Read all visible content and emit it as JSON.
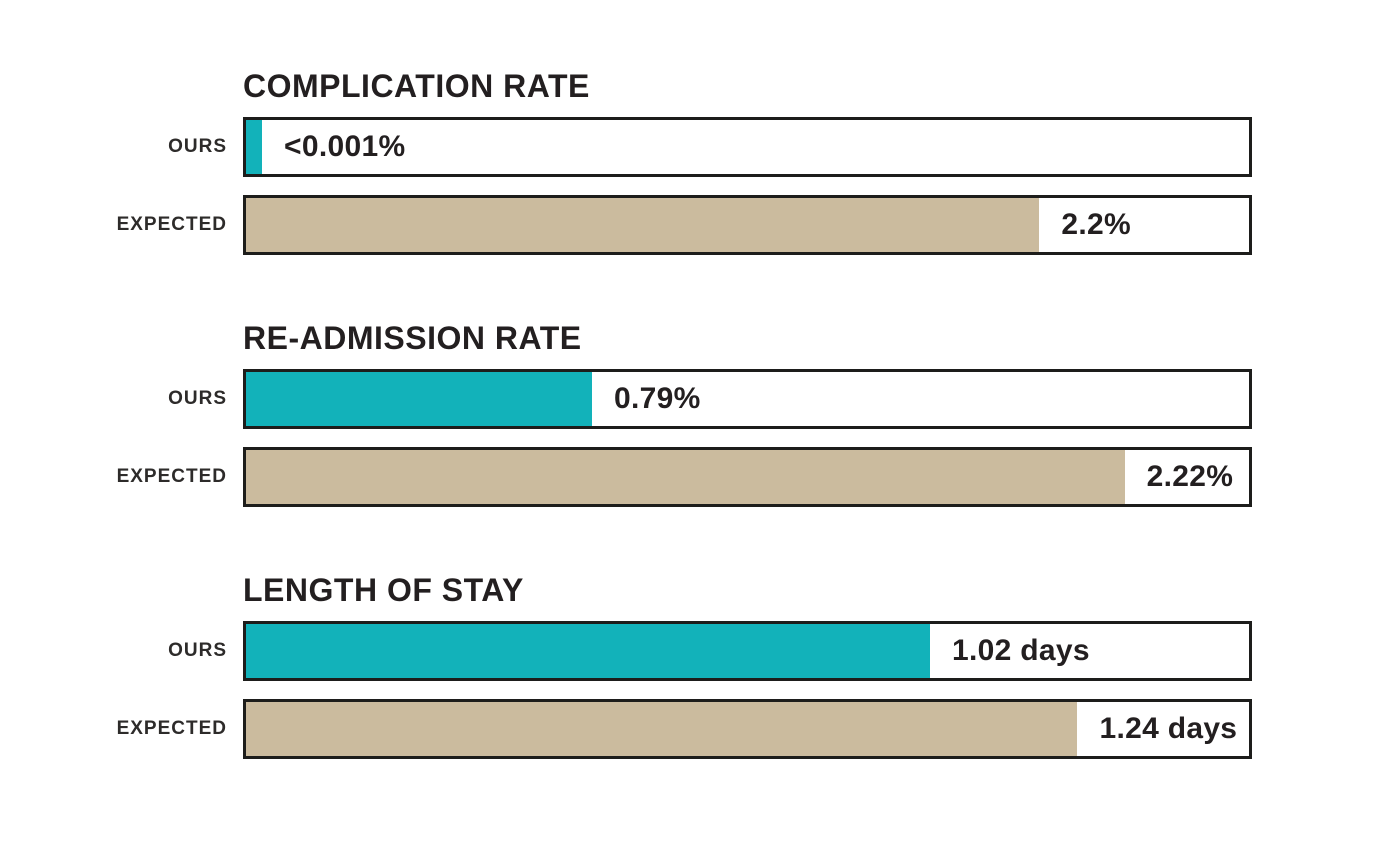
{
  "colors": {
    "ours_fill": "#12b2ba",
    "expected_fill": "#cbbb9e",
    "bar_border": "#1d1d1b",
    "text": "#231f20",
    "label_text": "#2d2b2a",
    "background": "#ffffff"
  },
  "chart_data": {
    "type": "bar",
    "orientation": "horizontal",
    "legend_position": "none",
    "grid": false,
    "row_labels": [
      "OURS",
      "EXPECTED"
    ],
    "groups": [
      {
        "title": "COMPLICATION RATE",
        "rows": [
          {
            "label": "OURS",
            "series": "ours",
            "value": 0.001,
            "unit": "%",
            "value_label": "<0.001%",
            "fill_pct": 1.6,
            "fill_color_key": "ours"
          },
          {
            "label": "EXPECTED",
            "series": "expected",
            "value": 2.2,
            "unit": "%",
            "value_label": "2.2%",
            "fill_pct": 79.1,
            "fill_color_key": "expected"
          }
        ]
      },
      {
        "title": "RE-ADMISSION RATE",
        "rows": [
          {
            "label": "OURS",
            "series": "ours",
            "value": 0.79,
            "unit": "%",
            "value_label": "0.79%",
            "fill_pct": 34.5,
            "fill_color_key": "ours"
          },
          {
            "label": "EXPECTED",
            "series": "expected",
            "value": 2.22,
            "unit": "%",
            "value_label": "2.22%",
            "fill_pct": 87.6,
            "fill_color_key": "expected"
          }
        ]
      },
      {
        "title": "LENGTH OF STAY",
        "rows": [
          {
            "label": "OURS",
            "series": "ours",
            "value": 1.02,
            "unit": "days",
            "value_label": "1.02 days",
            "fill_pct": 68.2,
            "fill_color_key": "ours"
          },
          {
            "label": "EXPECTED",
            "series": "expected",
            "value": 1.24,
            "unit": "days",
            "value_label": "1.24 days",
            "fill_pct": 82.9,
            "fill_color_key": "expected"
          }
        ]
      }
    ]
  }
}
